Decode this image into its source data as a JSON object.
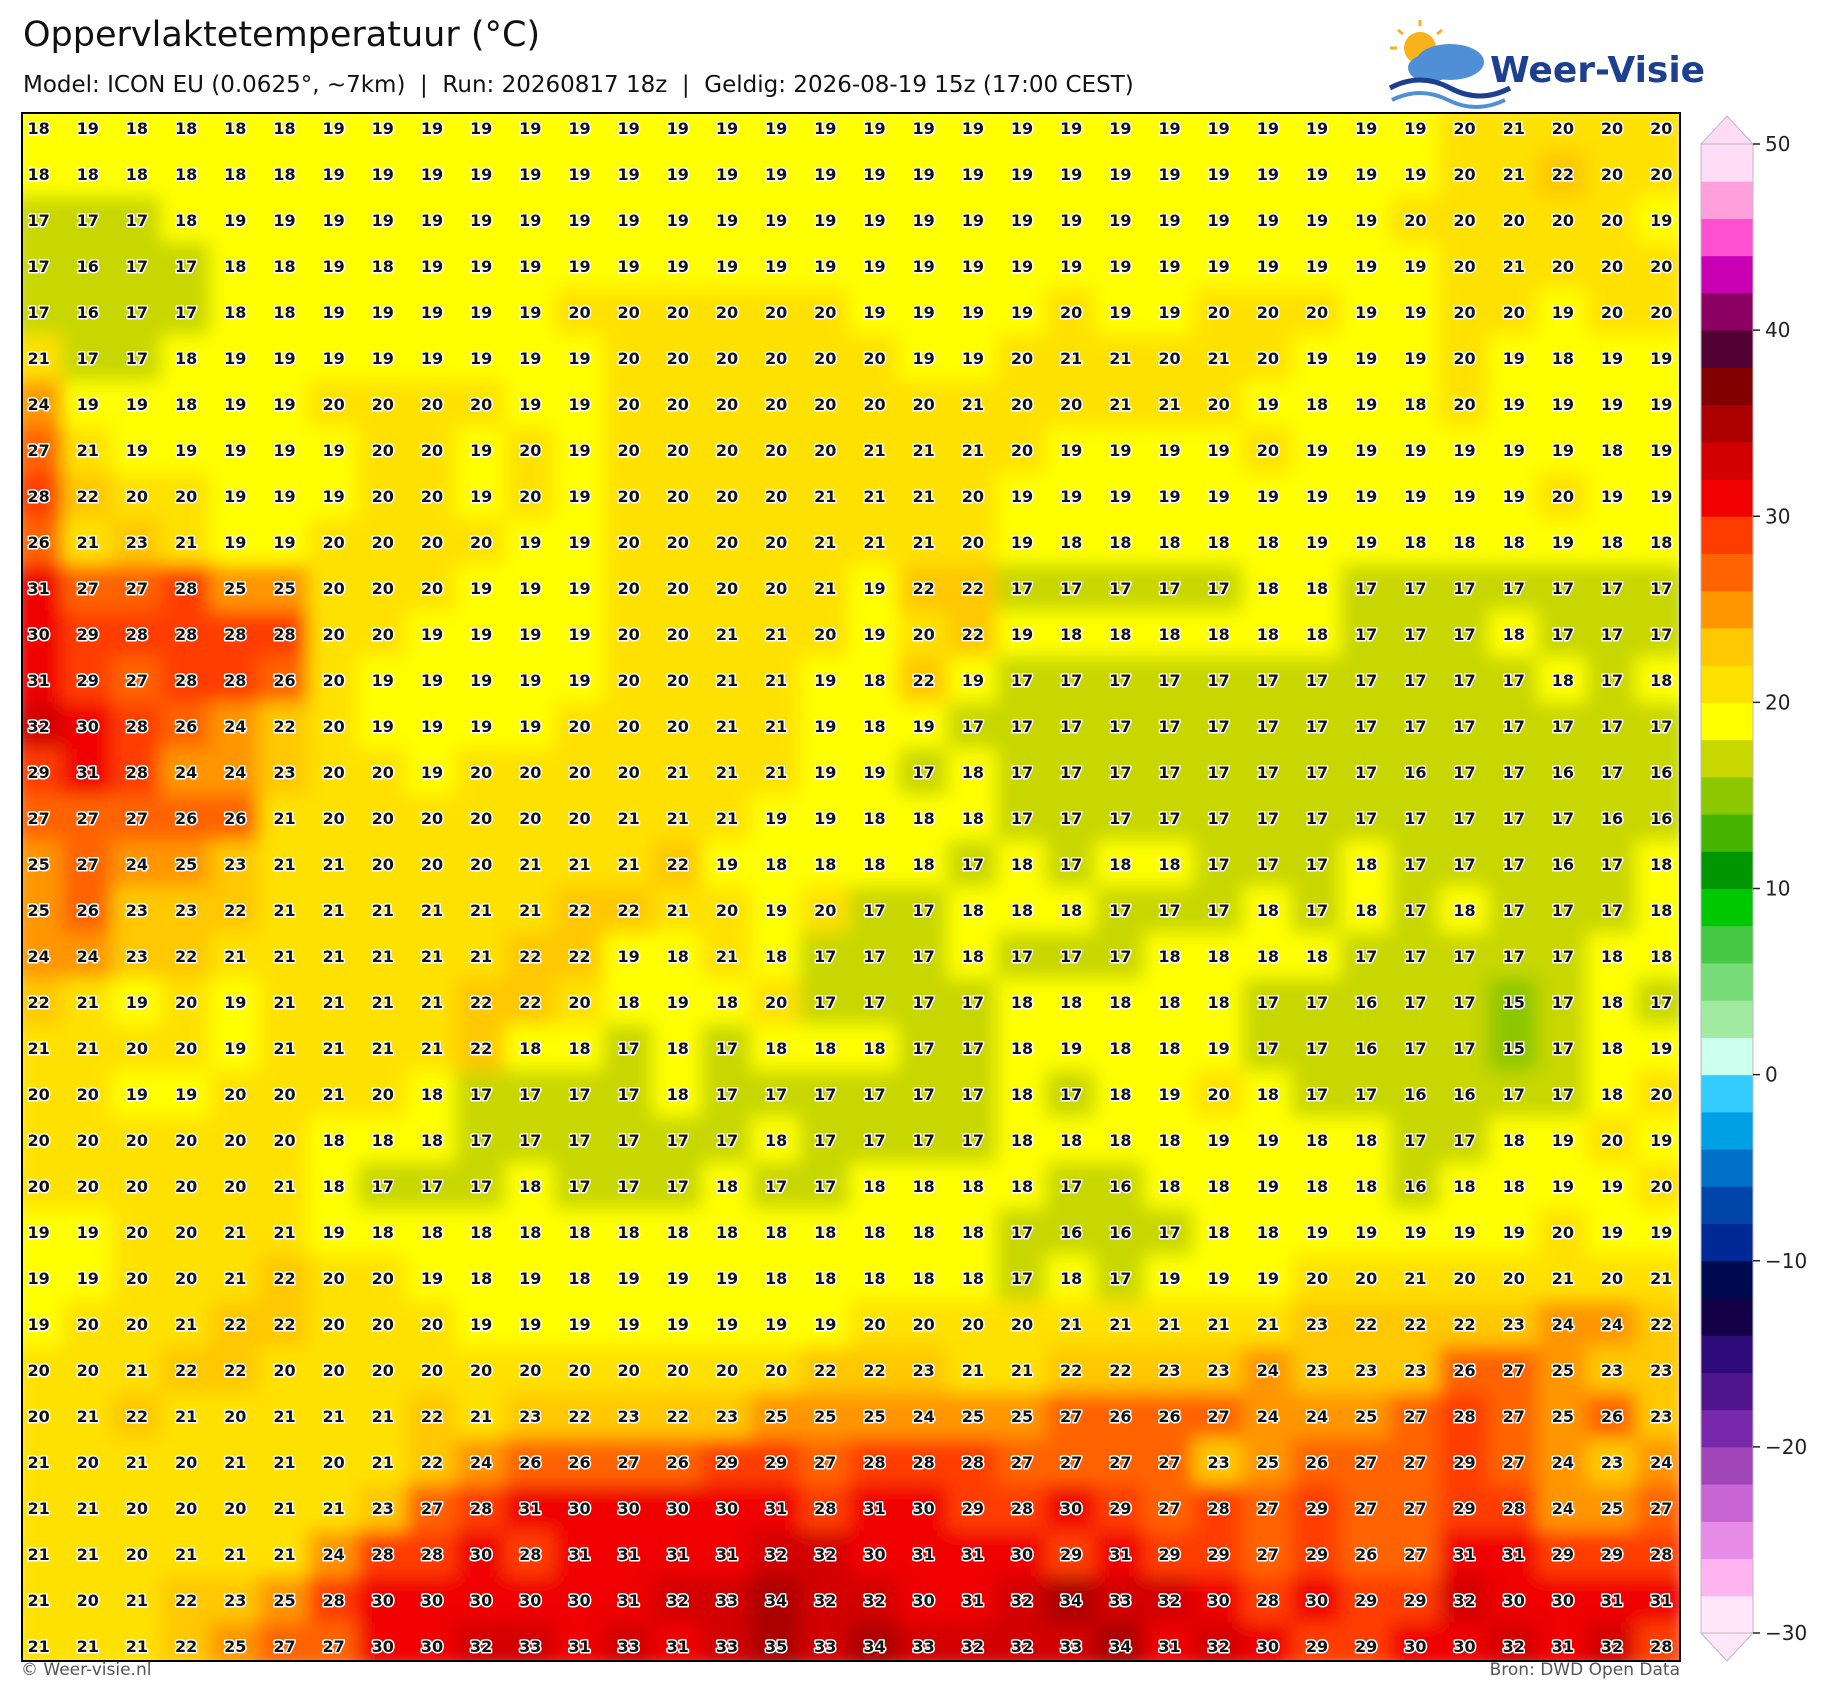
{
  "header": {
    "title": "Oppervlaktetemperatuur (°C)",
    "subtitle": "Model: ICON EU (0.0625°, ~7km)  |  Run: 20260817 18z  |  Geldig: 2026-08-19 15z (17:00 CEST)"
  },
  "logo": "Weer-Visie",
  "map": {
    "rows": [
      [
        18,
        19,
        18,
        18,
        18,
        18,
        19,
        19,
        19,
        19,
        19,
        19,
        19,
        19,
        19,
        19,
        19,
        19,
        19,
        19,
        19,
        19,
        19,
        19,
        19,
        19,
        19,
        19,
        19,
        20,
        21,
        20,
        20,
        20
      ],
      [
        18,
        18,
        18,
        18,
        18,
        18,
        19,
        19,
        19,
        19,
        19,
        19,
        19,
        19,
        19,
        19,
        19,
        19,
        19,
        19,
        19,
        19,
        19,
        19,
        19,
        19,
        19,
        19,
        19,
        20,
        21,
        22,
        20,
        20
      ],
      [
        17,
        17,
        17,
        18,
        19,
        19,
        19,
        19,
        19,
        19,
        19,
        19,
        19,
        19,
        19,
        19,
        19,
        19,
        19,
        19,
        19,
        19,
        19,
        19,
        19,
        19,
        19,
        19,
        20,
        20,
        20,
        20,
        20,
        19
      ],
      [
        17,
        16,
        17,
        17,
        18,
        18,
        19,
        18,
        19,
        19,
        19,
        19,
        19,
        19,
        19,
        19,
        19,
        19,
        19,
        19,
        19,
        19,
        19,
        19,
        19,
        19,
        19,
        19,
        19,
        20,
        21,
        20,
        20,
        20
      ],
      [
        17,
        16,
        17,
        17,
        18,
        18,
        19,
        19,
        19,
        19,
        19,
        20,
        20,
        20,
        20,
        20,
        20,
        19,
        19,
        19,
        19,
        20,
        19,
        19,
        20,
        20,
        20,
        19,
        19,
        20,
        20,
        19,
        20,
        20
      ],
      [
        21,
        17,
        17,
        18,
        19,
        19,
        19,
        19,
        19,
        19,
        19,
        19,
        20,
        20,
        20,
        20,
        20,
        20,
        19,
        19,
        20,
        21,
        21,
        20,
        21,
        20,
        19,
        19,
        19,
        20,
        19,
        18,
        19,
        19
      ],
      [
        24,
        19,
        19,
        18,
        19,
        19,
        20,
        20,
        20,
        20,
        19,
        19,
        20,
        20,
        20,
        20,
        20,
        20,
        20,
        21,
        20,
        20,
        21,
        21,
        20,
        19,
        18,
        19,
        18,
        20,
        19,
        19,
        19,
        19
      ],
      [
        27,
        21,
        19,
        19,
        19,
        19,
        19,
        20,
        20,
        19,
        20,
        19,
        20,
        20,
        20,
        20,
        20,
        21,
        21,
        21,
        20,
        19,
        19,
        19,
        19,
        20,
        19,
        19,
        19,
        19,
        19,
        19,
        18,
        19
      ],
      [
        28,
        22,
        20,
        20,
        19,
        19,
        19,
        20,
        20,
        19,
        20,
        19,
        20,
        20,
        20,
        20,
        21,
        21,
        21,
        20,
        19,
        19,
        19,
        19,
        19,
        19,
        19,
        19,
        19,
        19,
        19,
        20,
        19,
        19
      ],
      [
        26,
        21,
        23,
        21,
        19,
        19,
        20,
        20,
        20,
        20,
        19,
        19,
        20,
        20,
        20,
        20,
        21,
        21,
        21,
        20,
        19,
        18,
        18,
        18,
        18,
        18,
        19,
        19,
        18,
        18,
        18,
        19,
        18,
        18
      ],
      [
        31,
        27,
        27,
        28,
        25,
        25,
        20,
        20,
        20,
        19,
        19,
        19,
        20,
        20,
        20,
        20,
        21,
        19,
        22,
        22,
        17,
        17,
        17,
        17,
        17,
        18,
        18,
        17,
        17,
        17,
        17,
        17,
        17,
        17
      ],
      [
        30,
        29,
        28,
        28,
        28,
        28,
        20,
        20,
        19,
        19,
        19,
        19,
        20,
        20,
        21,
        21,
        20,
        19,
        20,
        22,
        19,
        18,
        18,
        18,
        18,
        18,
        18,
        17,
        17,
        17,
        18,
        17,
        17,
        17
      ],
      [
        31,
        29,
        27,
        28,
        28,
        26,
        20,
        19,
        19,
        19,
        19,
        19,
        20,
        20,
        21,
        21,
        19,
        18,
        22,
        19,
        17,
        17,
        17,
        17,
        17,
        17,
        17,
        17,
        17,
        17,
        17,
        18,
        17,
        18
      ],
      [
        32,
        30,
        28,
        26,
        24,
        22,
        20,
        19,
        19,
        19,
        19,
        20,
        20,
        20,
        21,
        21,
        19,
        18,
        19,
        17,
        17,
        17,
        17,
        17,
        17,
        17,
        17,
        17,
        17,
        17,
        17,
        17,
        17,
        17
      ],
      [
        29,
        31,
        28,
        24,
        24,
        23,
        20,
        20,
        19,
        20,
        20,
        20,
        20,
        21,
        21,
        21,
        19,
        19,
        17,
        18,
        17,
        17,
        17,
        17,
        17,
        17,
        17,
        17,
        16,
        17,
        17,
        16,
        17,
        16
      ],
      [
        27,
        27,
        27,
        26,
        26,
        21,
        20,
        20,
        20,
        20,
        20,
        20,
        21,
        21,
        21,
        19,
        19,
        18,
        18,
        18,
        17,
        17,
        17,
        17,
        17,
        17,
        17,
        17,
        17,
        17,
        17,
        17,
        16,
        16
      ],
      [
        25,
        27,
        24,
        25,
        23,
        21,
        21,
        20,
        20,
        20,
        21,
        21,
        21,
        22,
        19,
        18,
        18,
        18,
        18,
        17,
        18,
        17,
        18,
        18,
        17,
        17,
        17,
        18,
        17,
        17,
        17,
        16,
        17,
        18
      ],
      [
        25,
        26,
        23,
        23,
        22,
        21,
        21,
        21,
        21,
        21,
        21,
        22,
        22,
        21,
        20,
        19,
        20,
        17,
        17,
        18,
        18,
        18,
        17,
        17,
        17,
        18,
        17,
        18,
        17,
        18,
        17,
        17,
        17,
        18
      ],
      [
        24,
        24,
        23,
        22,
        21,
        21,
        21,
        21,
        21,
        21,
        22,
        22,
        19,
        18,
        21,
        18,
        17,
        17,
        17,
        18,
        17,
        17,
        17,
        18,
        18,
        18,
        18,
        17,
        17,
        17,
        17,
        17,
        18,
        18
      ],
      [
        22,
        21,
        19,
        20,
        19,
        21,
        21,
        21,
        21,
        22,
        22,
        20,
        18,
        19,
        18,
        20,
        17,
        17,
        17,
        17,
        18,
        18,
        18,
        18,
        18,
        17,
        17,
        16,
        17,
        17,
        15,
        17,
        18,
        17
      ],
      [
        21,
        21,
        20,
        20,
        19,
        21,
        21,
        21,
        21,
        22,
        18,
        18,
        17,
        18,
        17,
        18,
        18,
        18,
        17,
        17,
        18,
        19,
        18,
        18,
        19,
        17,
        17,
        16,
        17,
        17,
        15,
        17,
        18,
        19
      ],
      [
        20,
        20,
        19,
        19,
        20,
        20,
        21,
        20,
        18,
        17,
        17,
        17,
        17,
        18,
        17,
        17,
        17,
        17,
        17,
        17,
        18,
        17,
        18,
        19,
        20,
        18,
        17,
        17,
        16,
        16,
        17,
        17,
        18,
        20
      ],
      [
        20,
        20,
        20,
        20,
        20,
        20,
        18,
        18,
        18,
        17,
        17,
        17,
        17,
        17,
        17,
        18,
        17,
        17,
        17,
        17,
        18,
        18,
        18,
        18,
        19,
        19,
        18,
        18,
        17,
        17,
        18,
        19,
        20,
        19
      ],
      [
        20,
        20,
        20,
        20,
        20,
        21,
        18,
        17,
        17,
        17,
        18,
        17,
        17,
        17,
        18,
        17,
        17,
        18,
        18,
        18,
        18,
        17,
        16,
        18,
        18,
        19,
        18,
        18,
        16,
        18,
        18,
        19,
        19,
        20
      ],
      [
        19,
        19,
        20,
        20,
        21,
        21,
        19,
        18,
        18,
        18,
        18,
        18,
        18,
        18,
        18,
        18,
        18,
        18,
        18,
        18,
        17,
        16,
        16,
        17,
        18,
        18,
        19,
        19,
        19,
        19,
        19,
        20,
        19,
        19
      ],
      [
        19,
        19,
        20,
        20,
        21,
        22,
        20,
        20,
        19,
        18,
        19,
        18,
        19,
        19,
        19,
        18,
        18,
        18,
        18,
        18,
        17,
        18,
        17,
        19,
        19,
        19,
        20,
        20,
        21,
        20,
        20,
        21,
        20,
        21
      ],
      [
        19,
        20,
        20,
        21,
        22,
        22,
        20,
        20,
        20,
        19,
        19,
        19,
        19,
        19,
        19,
        19,
        19,
        20,
        20,
        20,
        20,
        21,
        21,
        21,
        21,
        21,
        23,
        22,
        22,
        22,
        23,
        24,
        24,
        22
      ],
      [
        20,
        20,
        21,
        22,
        22,
        20,
        20,
        20,
        20,
        20,
        20,
        20,
        20,
        20,
        20,
        20,
        22,
        22,
        23,
        21,
        21,
        22,
        22,
        23,
        23,
        24,
        23,
        23,
        23,
        26,
        27,
        25,
        23,
        23
      ],
      [
        20,
        21,
        22,
        21,
        20,
        21,
        21,
        21,
        22,
        21,
        23,
        22,
        23,
        22,
        23,
        25,
        25,
        25,
        24,
        25,
        25,
        27,
        26,
        26,
        27,
        24,
        24,
        25,
        27,
        28,
        27,
        25,
        26,
        23
      ],
      [
        21,
        20,
        21,
        20,
        21,
        21,
        20,
        21,
        22,
        24,
        26,
        26,
        27,
        26,
        29,
        29,
        27,
        28,
        28,
        28,
        27,
        27,
        27,
        27,
        23,
        25,
        26,
        27,
        27,
        29,
        27,
        24,
        23,
        24
      ],
      [
        21,
        21,
        20,
        20,
        20,
        21,
        21,
        23,
        27,
        28,
        31,
        30,
        30,
        30,
        30,
        31,
        28,
        31,
        30,
        29,
        28,
        30,
        29,
        27,
        28,
        27,
        29,
        27,
        27,
        29,
        28,
        24,
        25,
        27
      ],
      [
        21,
        21,
        20,
        21,
        21,
        21,
        24,
        28,
        28,
        30,
        28,
        31,
        31,
        31,
        31,
        32,
        32,
        30,
        31,
        31,
        30,
        29,
        31,
        29,
        29,
        27,
        29,
        26,
        27,
        31,
        31,
        29,
        29,
        28
      ],
      [
        21,
        20,
        21,
        22,
        23,
        25,
        28,
        30,
        30,
        30,
        30,
        30,
        31,
        32,
        33,
        34,
        32,
        32,
        30,
        31,
        32,
        34,
        33,
        32,
        30,
        28,
        30,
        29,
        29,
        32,
        30,
        30,
        31,
        31
      ],
      [
        21,
        21,
        21,
        22,
        25,
        27,
        27,
        30,
        30,
        32,
        33,
        31,
        33,
        31,
        33,
        35,
        33,
        34,
        33,
        32,
        32,
        33,
        34,
        31,
        32,
        30,
        29,
        29,
        30,
        30,
        32,
        31,
        32,
        28
      ]
    ]
  },
  "colorbar": {
    "clim": [
      -30,
      50
    ],
    "ticks": [
      {
        "value": -30,
        "label": "−30"
      },
      {
        "value": -20,
        "label": "−20"
      },
      {
        "value": -10,
        "label": "−10"
      },
      0,
      10,
      20,
      30,
      40,
      50
    ],
    "colors": [
      "#ffe6fa",
      "#ffb4f0",
      "#e68ce6",
      "#c864d2",
      "#a046b9",
      "#7828aa",
      "#50148c",
      "#2d0a78",
      "#140046",
      "#000a50",
      "#002896",
      "#0046aa",
      "#0070c8",
      "#00a0e6",
      "#33ccff",
      "#ccffee",
      "#a0eba0",
      "#78dc78",
      "#46c846",
      "#00c800",
      "#009600",
      "#46b400",
      "#8cc800",
      "#c8d700",
      "#ffff00",
      "#ffe100",
      "#ffc800",
      "#ff9600",
      "#ff6400",
      "#ff3c00",
      "#f00000",
      "#d20000",
      "#aa0000",
      "#820000",
      "#500032",
      "#8c0064",
      "#c800b4",
      "#ff50d2",
      "#ffa0dc",
      "#ffdcf5"
    ]
  },
  "footer": {
    "left": "© Weer-visie.nl",
    "right": "Bron: DWD Open Data"
  }
}
